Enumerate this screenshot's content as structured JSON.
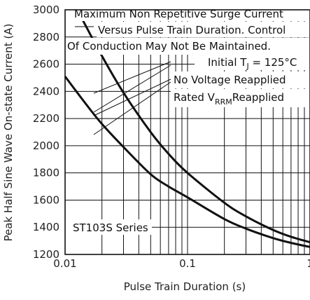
{
  "chart_data": {
    "type": "line",
    "title": "",
    "xlabel": "Pulse Train Duration (s)",
    "ylabel": "Peak Half Sine Wave On-state Current (A)",
    "xscale": "log",
    "xlim": [
      0.01,
      1
    ],
    "ylim": [
      1200,
      3000
    ],
    "grid": true,
    "x_ticks": [
      0.01,
      0.1,
      1
    ],
    "x_tick_labels": [
      "0.01",
      "0.1",
      "1"
    ],
    "y_ticks": [
      1200,
      1400,
      1600,
      1800,
      2000,
      2200,
      2400,
      2600,
      2800,
      3000
    ],
    "y_tick_labels": [
      "1200",
      "1400",
      "1600",
      "1800",
      "2000",
      "2200",
      "2400",
      "2600",
      "2800",
      "3000"
    ],
    "series": [
      {
        "name": "No Voltage Reapplied",
        "x": [
          0.0135,
          0.015,
          0.02,
          0.03,
          0.05,
          0.07,
          0.1,
          0.2,
          0.3,
          0.5,
          0.7,
          1.0
        ],
        "y": [
          2950,
          2870,
          2660,
          2390,
          2100,
          1940,
          1800,
          1580,
          1480,
          1380,
          1330,
          1290
        ]
      },
      {
        "name": "Rated VRRM Reapplied",
        "x": [
          0.01,
          0.015,
          0.02,
          0.03,
          0.05,
          0.07,
          0.1,
          0.2,
          0.3,
          0.5,
          0.7,
          1.0
        ],
        "y": [
          2510,
          2300,
          2160,
          1990,
          1790,
          1700,
          1620,
          1460,
          1390,
          1320,
          1285,
          1255
        ]
      }
    ],
    "annotations": {
      "title_lines": [
        "Maximum Non Repetitive Surge Current",
        "Versus Pulse Train Duration. Control",
        "Of Conduction May Not Be Maintained."
      ],
      "condition_prefix": "Initial T",
      "condition_sub": "J",
      "condition_suffix": " = 125°C",
      "no_voltage": "No Voltage Reapplied",
      "rated_prefix": "Rated V",
      "rated_sub": "RRM",
      "rated_suffix": "Reapplied",
      "series_label": "ST103S Series"
    }
  }
}
